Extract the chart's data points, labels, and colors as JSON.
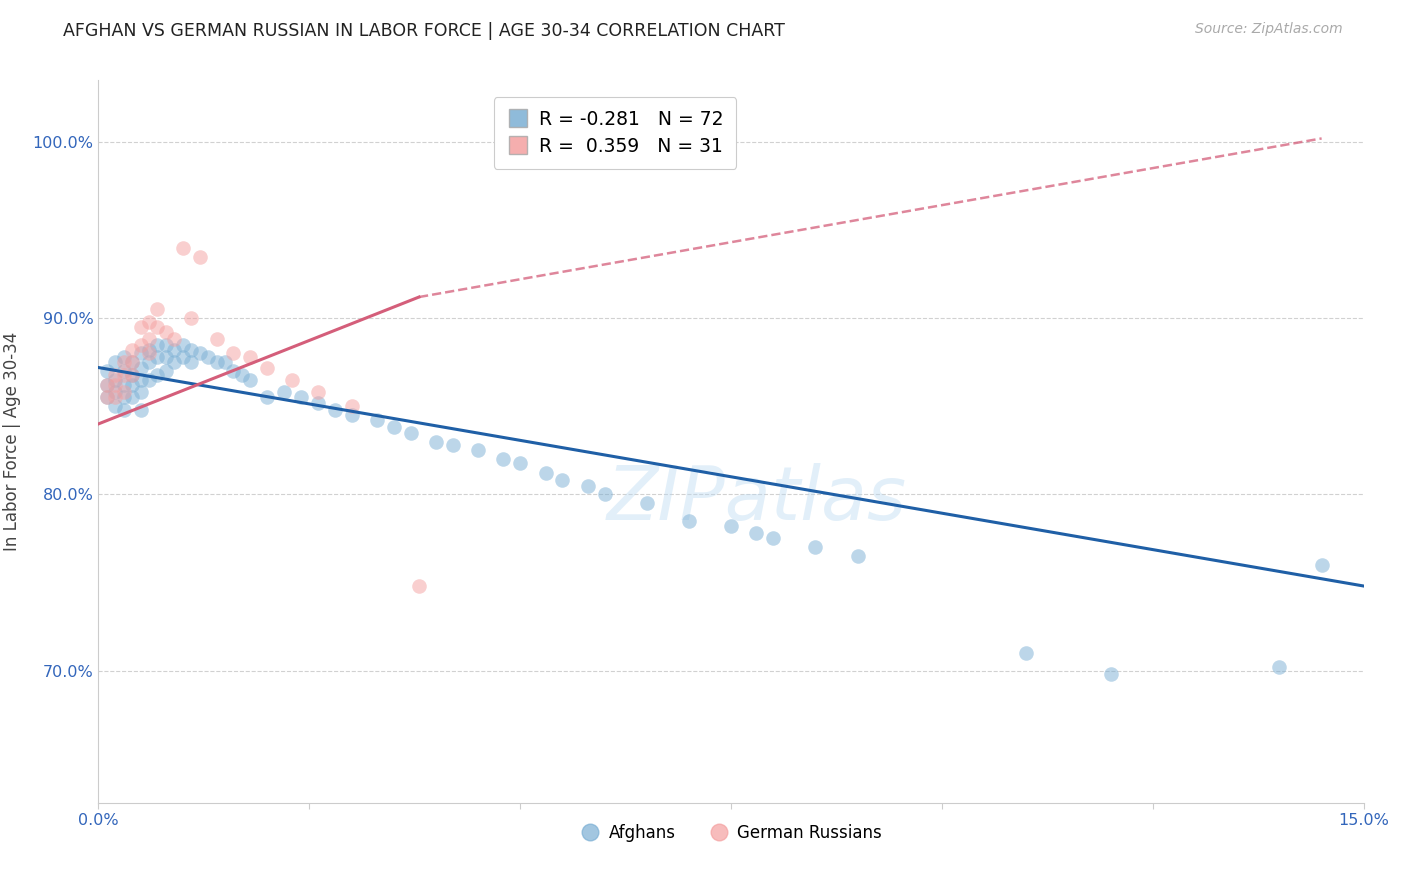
{
  "title": "AFGHAN VS GERMAN RUSSIAN IN LABOR FORCE | AGE 30-34 CORRELATION CHART",
  "source": "Source: ZipAtlas.com",
  "ylabel": "In Labor Force | Age 30-34",
  "legend_blue_r": "-0.281",
  "legend_blue_n": "72",
  "legend_pink_r": "0.359",
  "legend_pink_n": "31",
  "blue_color": "#7BAFD4",
  "pink_color": "#F4A0A0",
  "blue_line_color": "#1F5FA6",
  "pink_line_color": "#D45E7A",
  "xlim": [
    0.0,
    0.15
  ],
  "ylim": [
    0.625,
    1.035
  ],
  "xticks": [
    0.0,
    0.025,
    0.05,
    0.075,
    0.1,
    0.125,
    0.15
  ],
  "xticklabels": [
    "0.0%",
    "",
    "",
    "",
    "",
    "",
    "15.0%"
  ],
  "yticks": [
    0.7,
    0.8,
    0.9,
    1.0
  ],
  "yticklabels": [
    "70.0%",
    "80.0%",
    "90.0%",
    "100.0%"
  ],
  "blue_trend": [
    0.0,
    0.15,
    0.872,
    0.748
  ],
  "pink_trend_solid": [
    0.0,
    0.038,
    0.84,
    0.912
  ],
  "pink_trend_dashed": [
    0.038,
    0.145,
    0.912,
    1.002
  ],
  "afghans_x": [
    0.001,
    0.001,
    0.001,
    0.002,
    0.002,
    0.002,
    0.002,
    0.003,
    0.003,
    0.003,
    0.003,
    0.003,
    0.004,
    0.004,
    0.004,
    0.004,
    0.005,
    0.005,
    0.005,
    0.005,
    0.005,
    0.006,
    0.006,
    0.006,
    0.007,
    0.007,
    0.007,
    0.008,
    0.008,
    0.008,
    0.009,
    0.009,
    0.01,
    0.01,
    0.011,
    0.011,
    0.012,
    0.013,
    0.014,
    0.015,
    0.016,
    0.017,
    0.018,
    0.02,
    0.022,
    0.024,
    0.026,
    0.028,
    0.03,
    0.033,
    0.035,
    0.037,
    0.04,
    0.042,
    0.045,
    0.048,
    0.05,
    0.053,
    0.055,
    0.058,
    0.06,
    0.065,
    0.07,
    0.075,
    0.078,
    0.08,
    0.085,
    0.09,
    0.11,
    0.12,
    0.14,
    0.145
  ],
  "afghans_y": [
    0.87,
    0.862,
    0.855,
    0.875,
    0.865,
    0.858,
    0.85,
    0.878,
    0.87,
    0.862,
    0.855,
    0.848,
    0.875,
    0.868,
    0.862,
    0.855,
    0.88,
    0.872,
    0.865,
    0.858,
    0.848,
    0.882,
    0.875,
    0.865,
    0.885,
    0.878,
    0.868,
    0.885,
    0.878,
    0.87,
    0.882,
    0.875,
    0.885,
    0.878,
    0.882,
    0.875,
    0.88,
    0.878,
    0.875,
    0.875,
    0.87,
    0.868,
    0.865,
    0.855,
    0.858,
    0.855,
    0.852,
    0.848,
    0.845,
    0.842,
    0.838,
    0.835,
    0.83,
    0.828,
    0.825,
    0.82,
    0.818,
    0.812,
    0.808,
    0.805,
    0.8,
    0.795,
    0.785,
    0.782,
    0.778,
    0.775,
    0.77,
    0.765,
    0.71,
    0.698,
    0.702,
    0.76
  ],
  "german_russian_x": [
    0.001,
    0.001,
    0.002,
    0.002,
    0.002,
    0.003,
    0.003,
    0.003,
    0.004,
    0.004,
    0.004,
    0.005,
    0.005,
    0.006,
    0.006,
    0.006,
    0.007,
    0.007,
    0.008,
    0.009,
    0.01,
    0.011,
    0.012,
    0.014,
    0.016,
    0.018,
    0.02,
    0.023,
    0.026,
    0.03,
    0.038
  ],
  "german_russian_y": [
    0.862,
    0.855,
    0.868,
    0.862,
    0.855,
    0.875,
    0.868,
    0.858,
    0.882,
    0.875,
    0.868,
    0.895,
    0.885,
    0.898,
    0.888,
    0.88,
    0.905,
    0.895,
    0.892,
    0.888,
    0.94,
    0.9,
    0.935,
    0.888,
    0.88,
    0.878,
    0.872,
    0.865,
    0.858,
    0.85,
    0.748
  ]
}
